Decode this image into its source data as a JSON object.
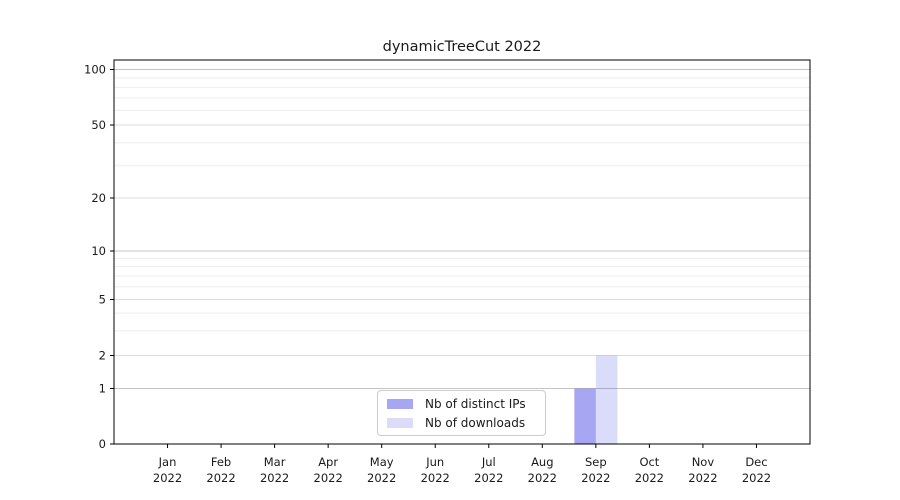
{
  "chart_data": {
    "type": "bar",
    "title": "dynamicTreeCut 2022",
    "months": [
      "Jan",
      "Feb",
      "Mar",
      "Apr",
      "May",
      "Jun",
      "Jul",
      "Aug",
      "Sep",
      "Oct",
      "Nov",
      "Dec"
    ],
    "year": "2022",
    "series": [
      {
        "name": "Nb of distinct IPs",
        "base_color": "#4d4de6",
        "fill_opacity": 0.5,
        "legend_color": "#a6a6f2",
        "values": [
          0,
          0,
          0,
          0,
          0,
          0,
          0,
          0,
          1,
          0,
          0,
          0
        ]
      },
      {
        "name": "Nb of downloads",
        "base_color": "#4d4de6",
        "fill_opacity": 0.2,
        "legend_color": "#dcdcf8",
        "values": [
          0,
          0,
          0,
          0,
          0,
          0,
          0,
          0,
          2,
          0,
          0,
          0
        ]
      }
    ],
    "y_ticks": [
      0,
      1,
      2,
      5,
      10,
      20,
      50,
      100
    ],
    "yscale": "log-like",
    "ylim": [
      0,
      110
    ],
    "grid": "horizontal, major and minor lines",
    "legend_position": "inside bottom-center",
    "grid_colors": {
      "major": "#c4c4c4",
      "labeled": "#dbdbdb",
      "minor": "#ededed"
    }
  }
}
